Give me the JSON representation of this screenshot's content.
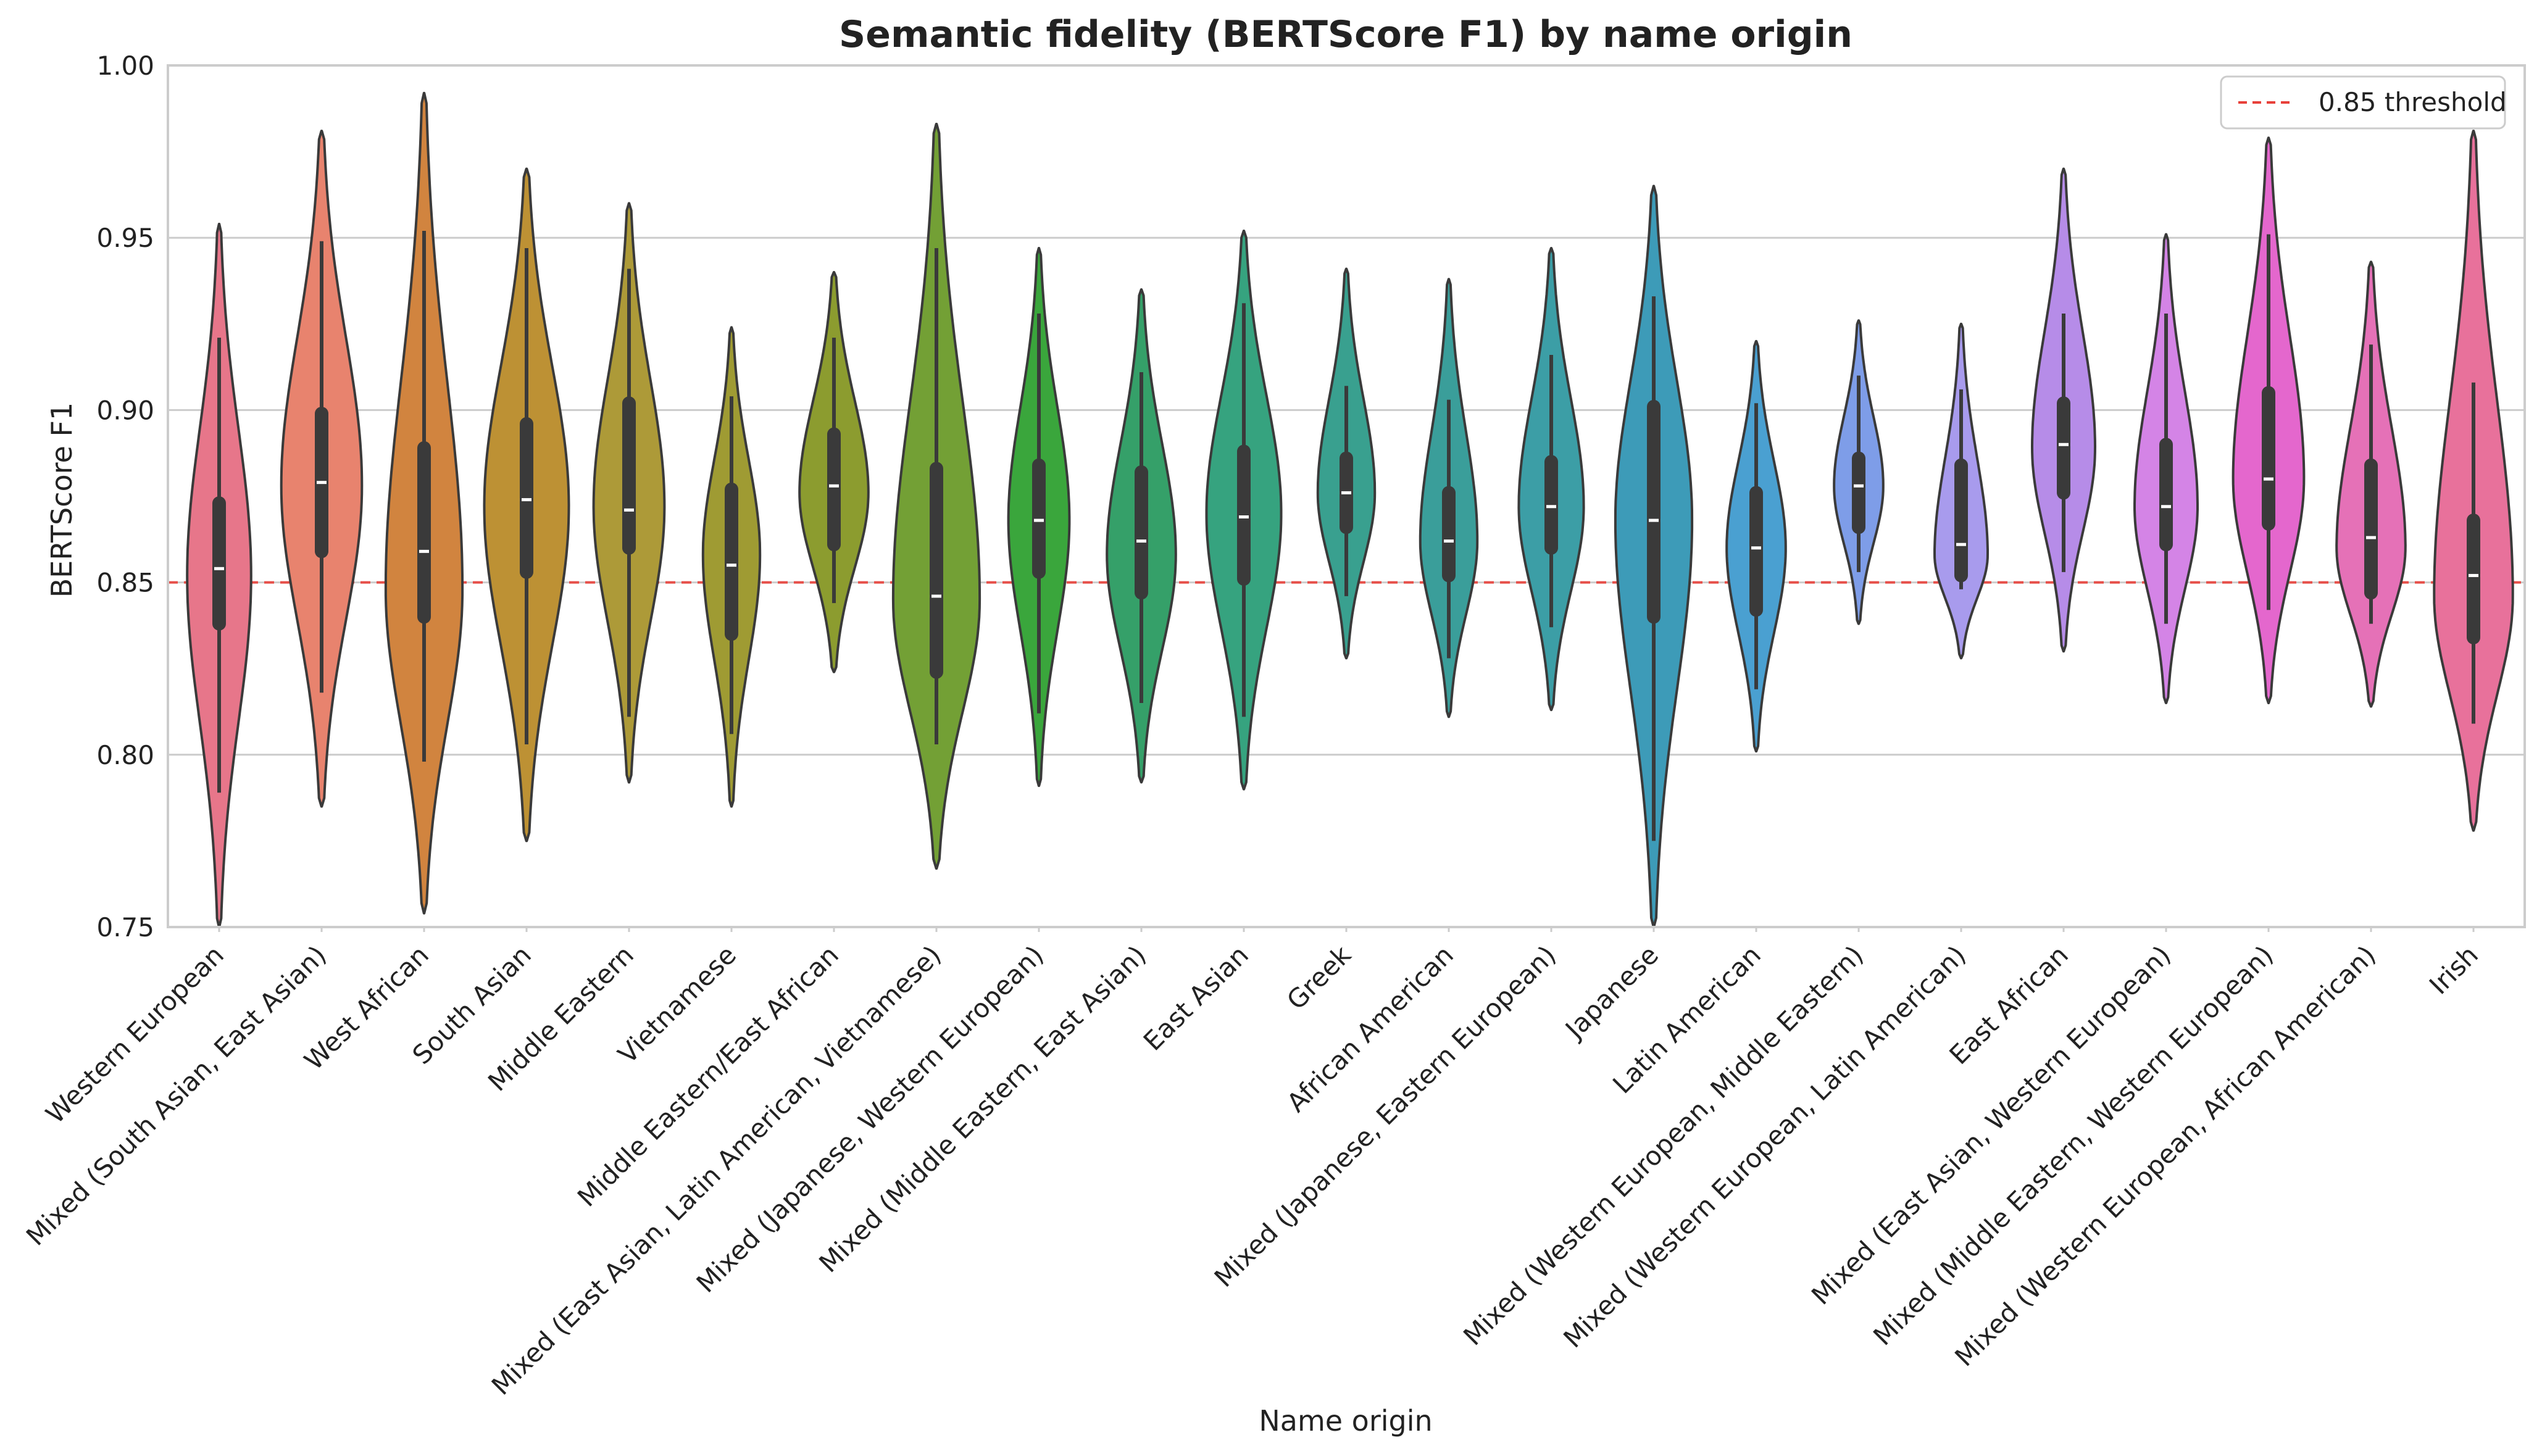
{
  "chart_data": {
    "type": "violin",
    "title": "Semantic fidelity (BERTScore F1) by name origin",
    "xlabel": "Name origin",
    "ylabel": "BERTScore F1",
    "ylim": [
      0.75,
      1.0
    ],
    "yticks": [
      "0.75",
      "0.80",
      "0.85",
      "0.90",
      "0.95",
      "1.00"
    ],
    "grid": true,
    "legend": {
      "position": "top-right",
      "entries": [
        "0.85 threshold"
      ]
    },
    "threshold": {
      "value": 0.85,
      "color": "#e8413a",
      "label": "0.85 threshold"
    },
    "categories": [
      {
        "name": "Western European",
        "color": "#e7768a",
        "min": 0.75,
        "max": 0.954,
        "q1": 0.838,
        "median": 0.854,
        "q3": 0.873,
        "wlo": 0.789,
        "whi": 0.921,
        "peak": 0.852,
        "width": 0.65
      },
      {
        "name": "Mixed (South Asian, East Asian)",
        "color": "#e8836e",
        "min": 0.785,
        "max": 0.981,
        "q1": 0.859,
        "median": 0.879,
        "q3": 0.899,
        "wlo": 0.818,
        "whi": 0.949,
        "peak": 0.878,
        "width": 0.82
      },
      {
        "name": "West African",
        "color": "#d1843f",
        "min": 0.754,
        "max": 0.992,
        "q1": 0.84,
        "median": 0.859,
        "q3": 0.889,
        "wlo": 0.798,
        "whi": 0.952,
        "peak": 0.848,
        "width": 0.78
      },
      {
        "name": "South Asian",
        "color": "#bd9134",
        "min": 0.775,
        "max": 0.97,
        "q1": 0.853,
        "median": 0.874,
        "q3": 0.896,
        "wlo": 0.803,
        "whi": 0.947,
        "peak": 0.872,
        "width": 0.86
      },
      {
        "name": "Middle Eastern",
        "color": "#ad9a38",
        "min": 0.792,
        "max": 0.96,
        "q1": 0.86,
        "median": 0.871,
        "q3": 0.902,
        "wlo": 0.811,
        "whi": 0.941,
        "peak": 0.872,
        "width": 0.72
      },
      {
        "name": "Vietnamese",
        "color": "#9f9b33",
        "min": 0.785,
        "max": 0.924,
        "q1": 0.835,
        "median": 0.855,
        "q3": 0.877,
        "wlo": 0.806,
        "whi": 0.904,
        "peak": 0.858,
        "width": 0.58
      },
      {
        "name": "Middle Eastern/East African",
        "color": "#8c9c2f",
        "min": 0.824,
        "max": 0.94,
        "q1": 0.861,
        "median": 0.878,
        "q3": 0.893,
        "wlo": 0.844,
        "whi": 0.921,
        "peak": 0.876,
        "width": 0.7
      },
      {
        "name": "Mixed (East Asian, Latin American, Vietnamese)",
        "color": "#73a035",
        "min": 0.767,
        "max": 0.983,
        "q1": 0.824,
        "median": 0.846,
        "q3": 0.883,
        "wlo": 0.803,
        "whi": 0.947,
        "peak": 0.845,
        "width": 0.88
      },
      {
        "name": "Mixed (Japanese, Western European)",
        "color": "#3aa63c",
        "min": 0.791,
        "max": 0.947,
        "q1": 0.853,
        "median": 0.868,
        "q3": 0.884,
        "wlo": 0.812,
        "whi": 0.928,
        "peak": 0.868,
        "width": 0.62
      },
      {
        "name": "Mixed (Middle Eastern, East Asian)",
        "color": "#35a069",
        "min": 0.792,
        "max": 0.935,
        "q1": 0.847,
        "median": 0.862,
        "q3": 0.882,
        "wlo": 0.815,
        "whi": 0.911,
        "peak": 0.858,
        "width": 0.7
      },
      {
        "name": "East Asian",
        "color": "#36a37f",
        "min": 0.79,
        "max": 0.952,
        "q1": 0.851,
        "median": 0.869,
        "q3": 0.888,
        "wlo": 0.811,
        "whi": 0.931,
        "peak": 0.87,
        "width": 0.76
      },
      {
        "name": "Greek",
        "color": "#39a08f",
        "min": 0.828,
        "max": 0.941,
        "q1": 0.866,
        "median": 0.876,
        "q3": 0.886,
        "wlo": 0.846,
        "whi": 0.907,
        "peak": 0.876,
        "width": 0.58
      },
      {
        "name": "African American",
        "color": "#3a9e9a",
        "min": 0.811,
        "max": 0.938,
        "q1": 0.852,
        "median": 0.862,
        "q3": 0.876,
        "wlo": 0.828,
        "whi": 0.903,
        "peak": 0.862,
        "width": 0.58
      },
      {
        "name": "Mixed (Japanese, Eastern European)",
        "color": "#3c9ea6",
        "min": 0.813,
        "max": 0.947,
        "q1": 0.86,
        "median": 0.872,
        "q3": 0.885,
        "wlo": 0.837,
        "whi": 0.916,
        "peak": 0.872,
        "width": 0.66
      },
      {
        "name": "Japanese",
        "color": "#3d9bb8",
        "min": 0.75,
        "max": 0.965,
        "q1": 0.84,
        "median": 0.868,
        "q3": 0.901,
        "wlo": 0.775,
        "whi": 0.933,
        "peak": 0.868,
        "width": 0.78
      },
      {
        "name": "Latin American",
        "color": "#4aa0d1",
        "min": 0.801,
        "max": 0.92,
        "q1": 0.842,
        "median": 0.86,
        "q3": 0.876,
        "wlo": 0.819,
        "whi": 0.902,
        "peak": 0.86,
        "width": 0.6
      },
      {
        "name": "Mixed (Western European, Middle Eastern)",
        "color": "#7e9de8",
        "min": 0.838,
        "max": 0.926,
        "q1": 0.866,
        "median": 0.878,
        "q3": 0.886,
        "wlo": 0.853,
        "whi": 0.91,
        "peak": 0.878,
        "width": 0.5
      },
      {
        "name": "Mixed (Western European, Latin American)",
        "color": "#a89bed",
        "min": 0.828,
        "max": 0.925,
        "q1": 0.852,
        "median": 0.861,
        "q3": 0.884,
        "wlo": 0.848,
        "whi": 0.906,
        "peak": 0.858,
        "width": 0.54
      },
      {
        "name": "East African",
        "color": "#b68ce8",
        "min": 0.83,
        "max": 0.97,
        "q1": 0.876,
        "median": 0.89,
        "q3": 0.902,
        "wlo": 0.853,
        "whi": 0.928,
        "peak": 0.889,
        "width": 0.64
      },
      {
        "name": "Mixed (East Asian, Western European)",
        "color": "#d484e6",
        "min": 0.815,
        "max": 0.951,
        "q1": 0.861,
        "median": 0.872,
        "q3": 0.89,
        "wlo": 0.838,
        "whi": 0.928,
        "peak": 0.872,
        "width": 0.64
      },
      {
        "name": "Mixed (Middle Eastern, Western European)",
        "color": "#e467cd",
        "min": 0.815,
        "max": 0.979,
        "q1": 0.867,
        "median": 0.88,
        "q3": 0.905,
        "wlo": 0.842,
        "whi": 0.951,
        "peak": 0.88,
        "width": 0.72
      },
      {
        "name": "Mixed (Western European, African American)",
        "color": "#e571b7",
        "min": 0.814,
        "max": 0.943,
        "q1": 0.847,
        "median": 0.863,
        "q3": 0.884,
        "wlo": 0.838,
        "whi": 0.919,
        "peak": 0.86,
        "width": 0.7
      },
      {
        "name": "Irish",
        "color": "#e8719b",
        "min": 0.778,
        "max": 0.981,
        "q1": 0.834,
        "median": 0.852,
        "q3": 0.868,
        "wlo": 0.809,
        "whi": 0.908,
        "peak": 0.846,
        "width": 0.8
      }
    ]
  }
}
